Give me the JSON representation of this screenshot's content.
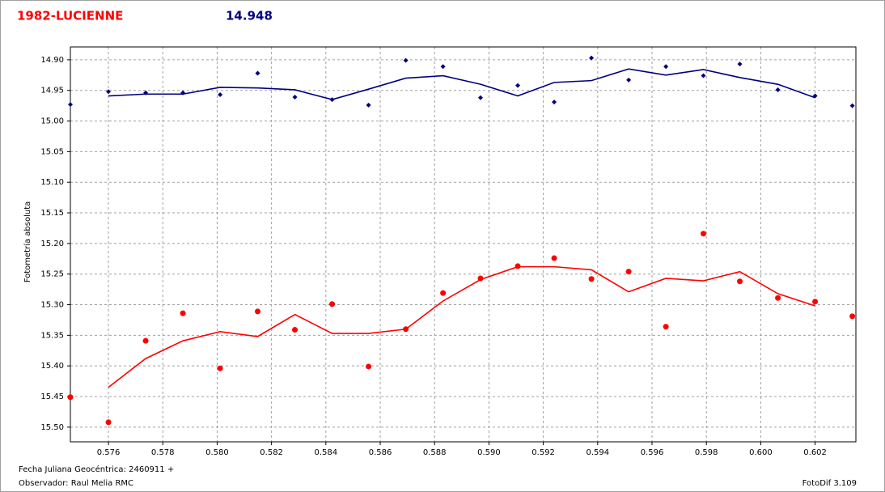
{
  "chart_data": {
    "type": "scatter",
    "title": "1982-LUCIENNE",
    "title_color": "#ff0000",
    "subtitle": "14.948",
    "subtitle_color": "#000080",
    "y_label": "Fotometría absoluta",
    "x_label": "Fecha Juliana Geocéntrica: 2460911 +",
    "observer": "Observador: Raul Melia RMC",
    "software": "FotoDif 3.109",
    "y_inverted": true,
    "grid": true,
    "xlim": [
      0.5746,
      0.6035
    ],
    "ylim": [
      14.879,
      15.524
    ],
    "xticks": [
      0.576,
      0.578,
      {
        "value": 0.58,
        "label": "0.580"
      },
      0.582,
      0.584,
      0.586,
      0.588,
      {
        "value": 0.59,
        "label": "0.590"
      },
      0.592,
      0.594,
      0.596,
      0.598,
      {
        "value": 0.6,
        "label": "0.600"
      },
      0.602
    ],
    "yticks": [
      {
        "value": 14.9,
        "label": "14.90"
      },
      14.95,
      {
        "value": 15,
        "label": "15.00"
      },
      15.05,
      {
        "value": 15.1,
        "label": "15.10"
      },
      15.15,
      {
        "value": 15.2,
        "label": "15.20"
      },
      15.25,
      {
        "value": 15.3,
        "label": "15.30"
      },
      15.35,
      {
        "value": 15.4,
        "label": "15.40"
      },
      15.45,
      {
        "value": 15.5,
        "label": "15.50"
      }
    ],
    "x": [
      0.5746,
      0.576,
      0.57737,
      0.57874,
      0.58011,
      0.58149,
      0.58286,
      0.58423,
      0.58557,
      0.58694,
      0.58831,
      0.58969,
      0.59106,
      0.5924,
      0.59377,
      0.59514,
      0.59651,
      0.59789,
      0.59923,
      0.60063,
      0.602,
      0.60337
    ],
    "series": [
      {
        "mode": "markers",
        "marker": "diamond",
        "color": "#000080",
        "values": [
          14.973,
          14.952,
          14.954,
          14.954,
          14.957,
          14.922,
          14.961,
          14.965,
          14.974,
          14.901,
          14.911,
          14.962,
          14.942,
          14.969,
          14.897,
          14.933,
          14.911,
          14.926,
          14.907,
          14.949,
          14.959,
          14.975
        ]
      },
      {
        "mode": "line",
        "color": "#000080",
        "values": [
          null,
          14.959,
          14.956,
          14.956,
          14.945,
          14.946,
          14.949,
          14.965,
          14.948,
          14.93,
          14.926,
          14.94,
          14.959,
          14.937,
          14.934,
          14.915,
          14.925,
          14.916,
          14.929,
          14.94,
          14.962,
          null
        ]
      },
      {
        "mode": "markers",
        "marker": "circle",
        "color": "#ff0000",
        "values": [
          15.451,
          15.492,
          15.359,
          15.314,
          15.404,
          15.311,
          15.341,
          15.299,
          15.401,
          15.34,
          15.281,
          15.257,
          15.237,
          15.224,
          15.258,
          15.246,
          15.336,
          15.184,
          15.262,
          15.289,
          15.295,
          15.319
        ]
      },
      {
        "mode": "line",
        "color": "#ff0000",
        "values": [
          null,
          15.435,
          15.388,
          15.359,
          15.344,
          15.352,
          15.316,
          15.347,
          15.347,
          15.34,
          15.294,
          15.259,
          15.238,
          15.238,
          15.243,
          15.279,
          15.257,
          15.261,
          15.246,
          15.282,
          15.302,
          null
        ]
      }
    ]
  }
}
